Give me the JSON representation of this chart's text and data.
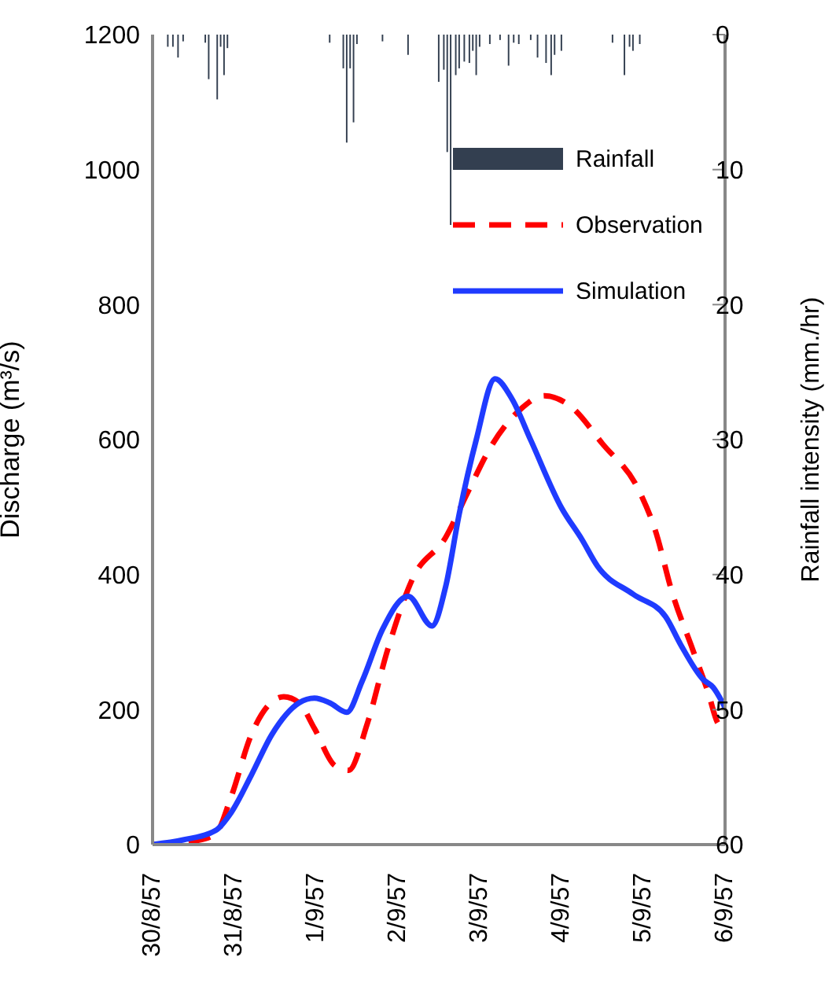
{
  "chart_data": {
    "type": "line",
    "xlabel": null,
    "ylabel": "Discharge (m³/s)",
    "y2label": "Rainfall intensity (mm./hr)",
    "xlim": [
      "1957-08-30",
      "1957-09-06"
    ],
    "xticks": [
      {
        "value": "1957-08-30",
        "label": "30/8/57"
      },
      {
        "value": "1957-08-31",
        "label": "31/8/57"
      },
      {
        "value": "1957-09-01",
        "label": "1/9/57"
      },
      {
        "value": "1957-09-02",
        "label": "2/9/57"
      },
      {
        "value": "1957-09-03",
        "label": "3/9/57"
      },
      {
        "value": "1957-09-04",
        "label": "4/9/57"
      },
      {
        "value": "1957-09-05",
        "label": "5/9/57"
      },
      {
        "value": "1957-09-06",
        "label": "6/9/57"
      }
    ],
    "ylim": [
      0,
      1200
    ],
    "yticks": [
      0,
      200,
      400,
      600,
      800,
      1000,
      1200
    ],
    "y2lim": [
      60,
      0
    ],
    "y2ticks": [
      0,
      10,
      20,
      30,
      40,
      50,
      60
    ],
    "grid": false,
    "legend": "top right",
    "marker": "none",
    "series": [
      {
        "name": "Rainfall",
        "type": "bar",
        "axis": "y2",
        "color": "#333f50",
        "x": [
          "1957-08-30T04:30",
          "1957-08-30T06:00",
          "1957-08-30T07:30",
          "1957-08-30T09:00",
          "1957-08-30T15:30",
          "1957-08-30T16:30",
          "1957-08-30T19:00",
          "1957-08-30T20:00",
          "1957-08-30T21:00",
          "1957-08-30T22:00",
          "1957-09-01T04:00",
          "1957-09-01T08:00",
          "1957-09-01T09:00",
          "1957-09-01T10:00",
          "1957-09-01T11:00",
          "1957-09-01T12:00",
          "1957-09-01T19:30",
          "1957-09-02T03:00",
          "1957-09-02T12:00",
          "1957-09-02T13:30",
          "1957-09-02T14:30",
          "1957-09-02T15:30",
          "1957-09-02T17:00",
          "1957-09-02T18:00",
          "1957-09-02T19:30",
          "1957-09-02T21:00",
          "1957-09-02T22:00",
          "1957-09-02T23:00",
          "1957-09-03T00:00",
          "1957-09-03T03:00",
          "1957-09-03T06:00",
          "1957-09-03T08:30",
          "1957-09-03T10:00",
          "1957-09-03T11:30",
          "1957-09-03T15:00",
          "1957-09-03T17:00",
          "1957-09-03T19:30",
          "1957-09-03T21:00",
          "1957-09-03T22:00",
          "1957-09-04T00:00",
          "1957-09-04T15:00",
          "1957-09-04T18:30",
          "1957-09-04T20:00",
          "1957-09-04T21:00",
          "1957-09-04T23:00"
        ],
        "values": [
          0.9,
          0.9,
          1.7,
          0.5,
          0.6,
          3.3,
          4.8,
          0.9,
          3.0,
          1.0,
          0.6,
          2.5,
          8.0,
          2.5,
          6.5,
          0.7,
          0.5,
          1.5,
          3.5,
          2.6,
          8.7,
          14.1,
          3.0,
          2.5,
          2.0,
          2.1,
          1.2,
          3.0,
          0.9,
          0.7,
          0.4,
          2.3,
          0.6,
          0.7,
          0.4,
          1.7,
          2.1,
          3.0,
          1.5,
          1.2,
          0.6,
          3.0,
          0.9,
          1.2,
          0.7
        ]
      },
      {
        "name": "Observation",
        "color": "#ff0000",
        "line_style": "dashed",
        "x": [
          "1957-08-30T00:00",
          "1957-08-30T12:00",
          "1957-08-30T18:30",
          "1957-08-30T23:00",
          "1957-08-31T05:00",
          "1957-08-31T14:30",
          "1957-08-31T19:00",
          "1957-08-31T23:30",
          "1957-09-01T05:30",
          "1957-09-01T09:30",
          "1957-09-01T15:00",
          "1957-09-01T21:00",
          "1957-09-02T04:30",
          "1957-09-02T14:00",
          "1957-09-02T20:30",
          "1957-09-03T03:00",
          "1957-09-03T12:00",
          "1957-09-03T19:00",
          "1957-09-04T02:30",
          "1957-09-04T12:00",
          "1957-09-04T23:00",
          "1957-09-05T03:30",
          "1957-09-05T08:30",
          "1957-09-05T14:30",
          "1957-09-05T19:00",
          "1957-09-05T22:00",
          "1957-09-06T00:00"
        ],
        "values": [
          0,
          5,
          16,
          70,
          163,
          219,
          210,
          172,
          117,
          110,
          179,
          289,
          396,
          455,
          522,
          587,
          645,
          665,
          650,
          594,
          522,
          466,
          373,
          289,
          226,
          179,
          172
        ]
      },
      {
        "name": "Simulation",
        "color": "#1f3bff",
        "line_style": "solid",
        "x": [
          "1957-08-30T00:00",
          "1957-08-30T09:00",
          "1957-08-30T18:30",
          "1957-08-30T23:00",
          "1957-08-31T05:00",
          "1957-08-31T11:00",
          "1957-08-31T19:00",
          "1957-08-31T23:30",
          "1957-09-01T04:00",
          "1957-09-01T09:00",
          "1957-09-01T13:30",
          "1957-09-01T19:30",
          "1957-09-02T03:00",
          "1957-09-02T10:00",
          "1957-09-02T14:00",
          "1957-09-02T18:00",
          "1957-09-02T23:00",
          "1957-09-03T04:30",
          "1957-09-03T09:30",
          "1957-09-03T15:00",
          "1957-09-04T00:00",
          "1957-09-04T06:00",
          "1957-09-04T10:30",
          "1957-09-04T21:00",
          "1957-09-05T06:30",
          "1957-09-05T11:00",
          "1957-09-05T17:30",
          "1957-09-05T20:30",
          "1957-09-06T00:00"
        ],
        "values": [
          0,
          7,
          21,
          47,
          103,
          163,
          210,
          217,
          210,
          196,
          242,
          319,
          368,
          324,
          382,
          490,
          600,
          690,
          660,
          599,
          499,
          452,
          413,
          371,
          338,
          296,
          245,
          233,
          203
        ]
      }
    ]
  }
}
